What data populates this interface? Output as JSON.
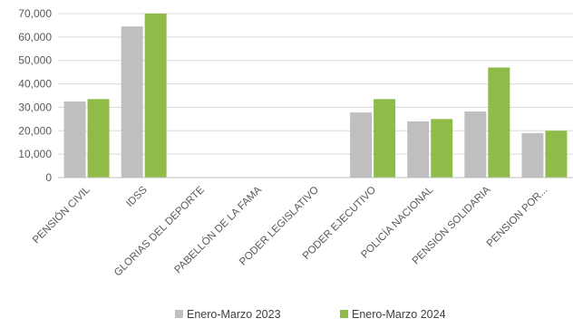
{
  "chart_data": {
    "type": "bar",
    "title": "",
    "xlabel": "",
    "ylabel": "",
    "ylim": [
      0,
      70000
    ],
    "yticks": [
      0,
      10000,
      20000,
      30000,
      40000,
      50000,
      60000,
      70000
    ],
    "ytick_labels": [
      "0",
      "10,000",
      "20,000",
      "30,000",
      "40,000",
      "50,000",
      "60,000",
      "70,000"
    ],
    "grid": true,
    "legend_position": "bottom",
    "categories": [
      "PENSIÓN CIVIL",
      "IDSS",
      "GLORIAS DEL DEPORTE",
      "PABELLÓN DE LA FAMA",
      "PODER LEGISLATIVO",
      "PODER EJECUTIVO",
      "POLICÍA NACIONAL",
      "PENSIÓN SOLIDARIA",
      "PENSION POR..."
    ],
    "series": [
      {
        "name": "Enero-Marzo 2023",
        "color": "#bfbfbf",
        "values": [
          32500,
          64500,
          0,
          0,
          0,
          27800,
          24000,
          28200,
          19000
        ]
      },
      {
        "name": "Enero-Marzo 2024",
        "color": "#8fbc48",
        "values": [
          33500,
          70000,
          0,
          0,
          0,
          33500,
          25000,
          47000,
          20000
        ]
      }
    ]
  }
}
